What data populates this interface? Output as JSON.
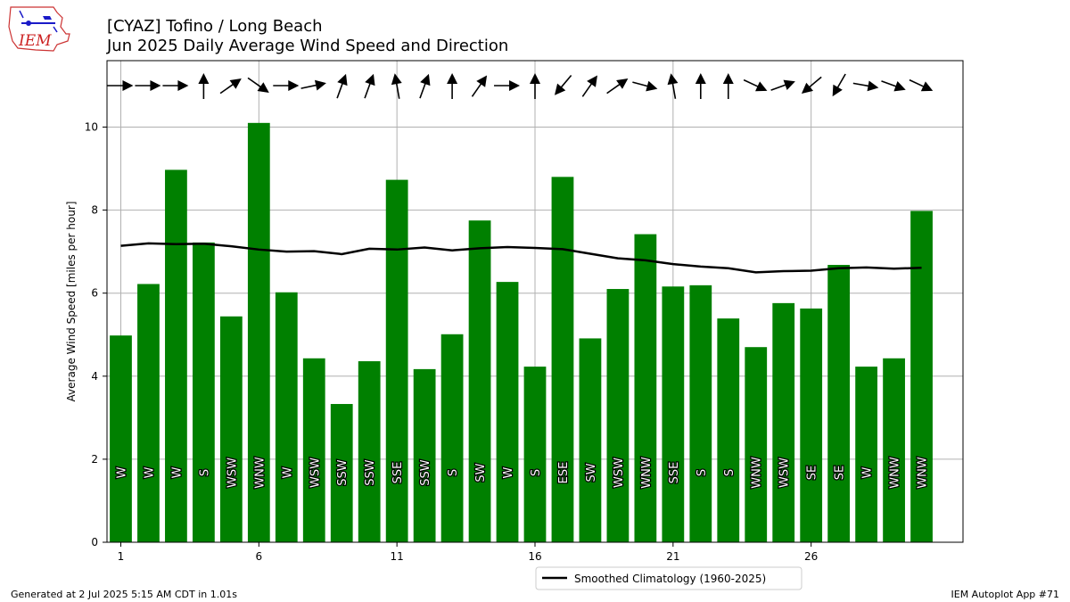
{
  "logo": {
    "text": "IEM",
    "icon": "iem-logo-icon"
  },
  "title": {
    "line1": "[CYAZ] Tofino / Long Beach",
    "line2": "Jun 2025 Daily Average Wind Speed and Direction"
  },
  "footer": {
    "left": "Generated at 2 Jul 2025 5:15 AM CDT in 1.01s",
    "right": "IEM Autoplot App #71"
  },
  "legend": {
    "label": "Smoothed Climatology (1960-2025)"
  },
  "colors": {
    "bar": "#008000",
    "climo": "#000000",
    "grid": "#b0b0b0"
  },
  "chart_data": {
    "type": "bar",
    "xlabel": "",
    "ylabel": "Average Wind Speed [miles per hour]",
    "xlim": [
      0.5,
      31.5
    ],
    "ylim": [
      0,
      11.6
    ],
    "x_ticks": [
      1,
      6,
      11,
      16,
      21,
      26
    ],
    "y_ticks": [
      0,
      2,
      4,
      6,
      8,
      10
    ],
    "grid": true,
    "legend_position": "bottom-center",
    "days": [
      1,
      2,
      3,
      4,
      5,
      6,
      7,
      8,
      9,
      10,
      11,
      12,
      13,
      14,
      15,
      16,
      17,
      18,
      19,
      20,
      21,
      22,
      23,
      24,
      25,
      26,
      27,
      28,
      29,
      30
    ],
    "series": [
      {
        "name": "",
        "values": [
          4.98,
          6.22,
          8.97,
          7.22,
          5.44,
          10.1,
          6.02,
          4.43,
          3.33,
          4.36,
          8.73,
          4.17,
          5.01,
          7.75,
          6.27,
          4.23,
          8.8,
          4.91,
          6.1,
          7.42,
          6.16,
          6.19,
          5.39,
          4.7,
          5.76,
          5.63,
          6.68,
          4.23,
          4.43,
          7.98
        ]
      },
      {
        "name": "Smoothed Climatology (1960-2025)",
        "type": "line",
        "values": [
          7.14,
          7.2,
          7.18,
          7.19,
          7.13,
          7.05,
          7.0,
          7.01,
          6.94,
          7.07,
          7.05,
          7.1,
          7.03,
          7.08,
          7.11,
          7.09,
          7.06,
          6.95,
          6.84,
          6.79,
          6.7,
          6.64,
          6.6,
          6.5,
          6.53,
          6.54,
          6.6,
          6.62,
          6.59,
          6.61
        ]
      }
    ],
    "directions": [
      "W",
      "W",
      "W",
      "S",
      "WSW",
      "WNW",
      "W",
      "WSW",
      "SSW",
      "SSW",
      "SSE",
      "SSW",
      "S",
      "SW",
      "W",
      "S",
      "ESE",
      "SW",
      "WSW",
      "WNW",
      "SSE",
      "S",
      "S",
      "WNW",
      "WSW",
      "SE",
      "SE",
      "W",
      "WNW",
      "WNW"
    ],
    "arrow_angles_deg": [
      0,
      0,
      0,
      -90,
      -35,
      35,
      0,
      -12,
      -70,
      -70,
      -100,
      -70,
      -90,
      -55,
      0,
      -90,
      130,
      -55,
      -35,
      15,
      -100,
      -90,
      -90,
      25,
      -20,
      140,
      120,
      10,
      20,
      25
    ]
  }
}
